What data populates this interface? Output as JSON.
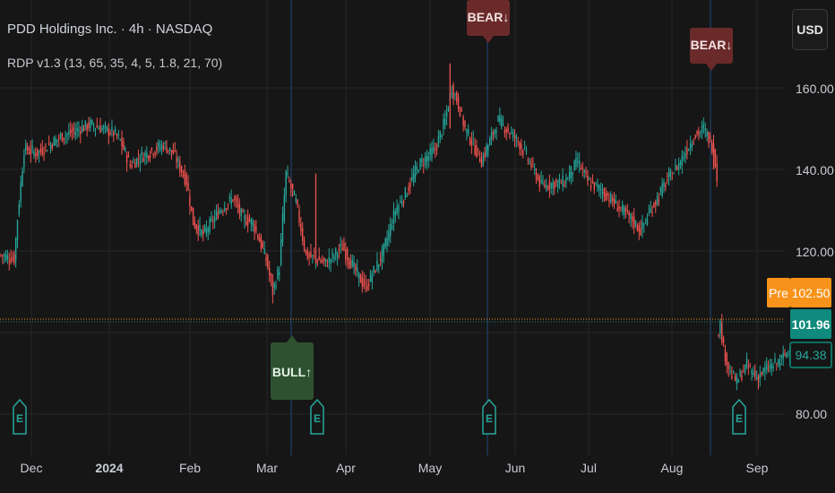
{
  "header": {
    "title": "PDD Holdings Inc. · 4h · NASDAQ",
    "indicator": "RDP v1.3 (13, 65, 35, 4, 5, 1.8, 21, 70)"
  },
  "currency_button": "USD",
  "colors": {
    "background": "#161616",
    "grid": "#262626",
    "up": "#26a69a",
    "down": "#ef5350",
    "vline": "#1f3a5f",
    "bear_label": "#6b2a2a",
    "bull_label": "#2e5230",
    "earnings": "#26a69a",
    "pre_market": "#f7931a",
    "last_price": "#0f8a7c"
  },
  "chart_data": {
    "type": "candlestick",
    "y_ticks": [
      "160.00",
      "140.00",
      "120.00",
      "80.00"
    ],
    "x_ticks": [
      "Dec",
      "2024",
      "Feb",
      "Mar",
      "Apr",
      "May",
      "Jun",
      "Jul",
      "Aug",
      "Sep"
    ],
    "price_tags": {
      "pre_label": "Pre",
      "pre_price": "102.50",
      "last_price": "101.96",
      "secondary": "94.38"
    },
    "signals": [
      {
        "text": "BEAR↓",
        "x": "2024-05-23",
        "price": 164
      },
      {
        "text": "BEAR↓",
        "x": "2024-08-19",
        "price": 150
      },
      {
        "text": "BULL↑",
        "x": "2024-03-07",
        "price": 107
      }
    ],
    "earnings_markers": [
      "E",
      "E",
      "E",
      "E"
    ],
    "trend": [
      [
        0,
        119
      ],
      [
        8,
        118
      ],
      [
        10,
        128
      ],
      [
        14,
        145
      ],
      [
        22,
        144
      ],
      [
        36,
        148
      ],
      [
        54,
        151
      ],
      [
        68,
        149
      ],
      [
        72,
        147
      ],
      [
        78,
        141
      ],
      [
        84,
        143
      ],
      [
        98,
        146
      ],
      [
        104,
        144
      ],
      [
        112,
        137
      ],
      [
        116,
        127
      ],
      [
        122,
        124
      ],
      [
        132,
        130
      ],
      [
        140,
        133
      ],
      [
        146,
        128
      ],
      [
        152,
        127
      ],
      [
        160,
        118
      ],
      [
        164,
        110
      ],
      [
        168,
        116
      ],
      [
        170,
        128
      ],
      [
        172,
        139
      ],
      [
        178,
        132
      ],
      [
        184,
        119
      ],
      [
        196,
        117
      ],
      [
        206,
        121
      ],
      [
        214,
        115
      ],
      [
        220,
        111
      ],
      [
        230,
        119
      ],
      [
        238,
        130
      ],
      [
        244,
        134
      ],
      [
        252,
        141
      ],
      [
        262,
        145
      ],
      [
        268,
        152
      ],
      [
        272,
        160
      ],
      [
        276,
        156
      ],
      [
        280,
        150
      ],
      [
        290,
        142
      ],
      [
        300,
        152
      ],
      [
        312,
        147
      ],
      [
        320,
        141
      ],
      [
        326,
        136
      ],
      [
        340,
        137
      ],
      [
        348,
        142
      ],
      [
        354,
        137
      ],
      [
        362,
        135
      ],
      [
        372,
        131
      ],
      [
        380,
        128
      ],
      [
        386,
        125
      ],
      [
        392,
        130
      ],
      [
        400,
        136
      ],
      [
        410,
        142
      ],
      [
        418,
        148
      ],
      [
        424,
        150
      ],
      [
        430,
        145
      ],
      [
        432,
        138
      ]
    ],
    "trend_after_gap": [
      [
        432,
        99
      ],
      [
        434,
        102
      ],
      [
        436,
        96
      ],
      [
        440,
        90
      ],
      [
        444,
        88
      ],
      [
        450,
        92
      ],
      [
        456,
        89
      ],
      [
        462,
        91
      ],
      [
        470,
        93
      ],
      [
        476,
        96
      ]
    ]
  }
}
